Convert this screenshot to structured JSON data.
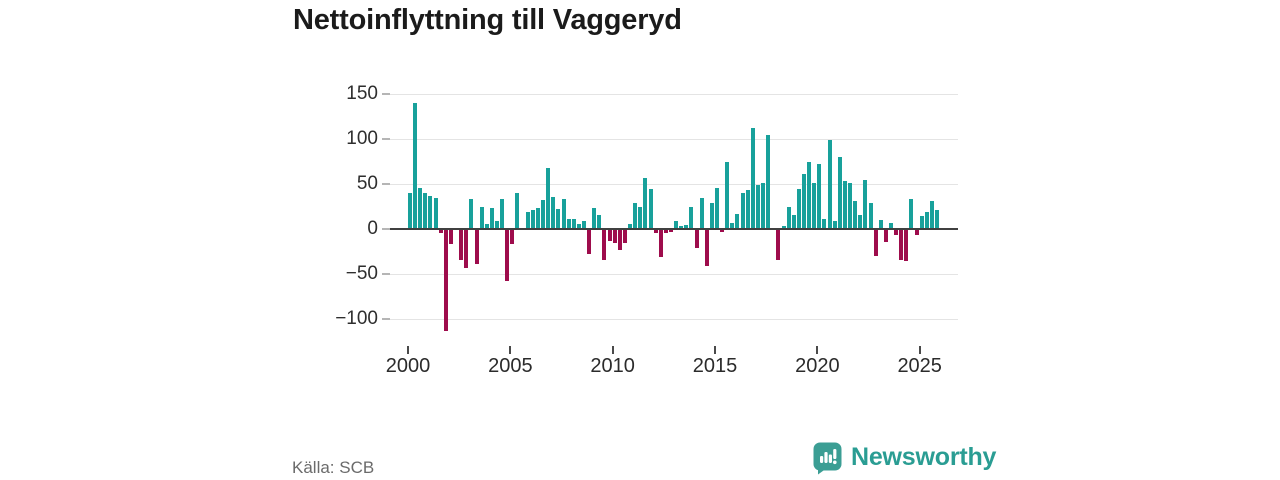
{
  "title": "Nettoinflyttning till Vaggeryd",
  "source": "Källa: SCB",
  "brand": "Newsworthy",
  "colors": {
    "positive_bar": "#18a19b",
    "negative_bar": "#9e0c4c",
    "logo_teal": "#3b9e94",
    "brand_text": "#2a9d93",
    "gridline": "#e4e4e4",
    "zero_line": "#404040"
  },
  "icons": {
    "logo_icon": "speech-bubble-bar-chart"
  },
  "chart_data": {
    "type": "bar",
    "title": "Nettoinflyttning till Vaggeryd",
    "frequency": "quarterly",
    "start_period": "2000-Q1",
    "end_period": "2025-Q4",
    "grid": "horizontal",
    "legend": "none",
    "xlabel": "",
    "ylabel": "",
    "x_axis": {
      "tick_labels": [
        "2000",
        "2005",
        "2010",
        "2015",
        "2020",
        "2025"
      ]
    },
    "y_axis": {
      "tick_labels": [
        150,
        100,
        50,
        0,
        -50,
        -100
      ],
      "range": [
        -125,
        158
      ]
    },
    "values_by_year": [
      {
        "year": 2000,
        "values": [
          40,
          140,
          46,
          40
        ]
      },
      {
        "year": 2001,
        "values": [
          37,
          35,
          -4,
          -113
        ]
      },
      {
        "year": 2002,
        "values": [
          -17,
          0,
          -34,
          -43
        ]
      },
      {
        "year": 2003,
        "values": [
          33,
          -39,
          24,
          6
        ]
      },
      {
        "year": 2004,
        "values": [
          23,
          9,
          33,
          -58
        ]
      },
      {
        "year": 2005,
        "values": [
          -17,
          40,
          0,
          19
        ]
      },
      {
        "year": 2006,
        "values": [
          21,
          23,
          32,
          68
        ]
      },
      {
        "year": 2007,
        "values": [
          36,
          22,
          33,
          11
        ]
      },
      {
        "year": 2008,
        "values": [
          11,
          6,
          9,
          -28
        ]
      },
      {
        "year": 2009,
        "values": [
          23,
          16,
          -34,
          -13
        ]
      },
      {
        "year": 2010,
        "values": [
          -15,
          -23,
          -16,
          6
        ]
      },
      {
        "year": 2011,
        "values": [
          29,
          24,
          57,
          45
        ]
      },
      {
        "year": 2012,
        "values": [
          -4,
          -31,
          -4,
          -3
        ]
      },
      {
        "year": 2013,
        "values": [
          9,
          3,
          5,
          25
        ]
      },
      {
        "year": 2014,
        "values": [
          -21,
          35,
          -41,
          29
        ]
      },
      {
        "year": 2015,
        "values": [
          46,
          -3,
          74,
          7
        ]
      },
      {
        "year": 2016,
        "values": [
          17,
          40,
          43,
          112
        ]
      },
      {
        "year": 2017,
        "values": [
          49,
          51,
          105,
          0
        ]
      },
      {
        "year": 2018,
        "values": [
          -34,
          3,
          24,
          16
        ]
      },
      {
        "year": 2019,
        "values": [
          44,
          61,
          74,
          51
        ]
      },
      {
        "year": 2020,
        "values": [
          72,
          11,
          99,
          9
        ]
      },
      {
        "year": 2021,
        "values": [
          80,
          53,
          51,
          31
        ]
      },
      {
        "year": 2022,
        "values": [
          16,
          55,
          29,
          -30
        ]
      },
      {
        "year": 2023,
        "values": [
          10,
          -14,
          7,
          -7
        ]
      },
      {
        "year": 2024,
        "values": [
          -34,
          -36,
          33,
          -7
        ]
      },
      {
        "year": 2025,
        "values": [
          14,
          19,
          31,
          21
        ]
      }
    ]
  }
}
